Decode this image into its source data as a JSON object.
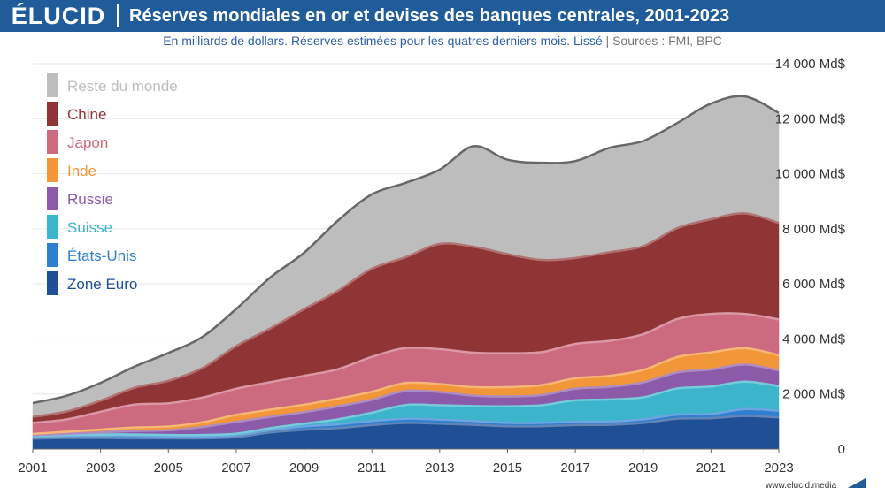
{
  "header": {
    "logo": "ÉLUCID",
    "title": "Réserves mondiales en or et devises des banques centrales, 2001-2023"
  },
  "subtitle": {
    "text": "En milliards de dollars. Réserves estimées pour les quatres derniers mois. Lissé",
    "separator": "|",
    "sources": "Sources : FMI, BPC"
  },
  "footer": {
    "url": "www.elucid.media"
  },
  "colors": {
    "Reste du monde": "#bdbdbd",
    "Chine": "#8f3535",
    "Japon": "#cc6a7f",
    "Inde": "#f2963a",
    "Russie": "#8b5aa8",
    "Suisse": "#3bb4cc",
    "États-Unis": "#2f7fd1",
    "Zone Euro": "#1f5096"
  },
  "chart_data": {
    "type": "area",
    "stacked": true,
    "x": [
      2001,
      2002,
      2003,
      2004,
      2005,
      2006,
      2007,
      2008,
      2009,
      2010,
      2011,
      2012,
      2013,
      2014,
      2015,
      2016,
      2017,
      2018,
      2019,
      2020,
      2021,
      2022,
      2023
    ],
    "series": [
      {
        "name": "Zone Euro",
        "values": [
          380,
          400,
          400,
          390,
          390,
          390,
          430,
          600,
          700,
          760,
          870,
          950,
          920,
          880,
          830,
          830,
          870,
          880,
          950,
          1100,
          1120,
          1200,
          1150
        ]
      },
      {
        "name": "États-Unis",
        "values": [
          60,
          70,
          80,
          90,
          70,
          70,
          70,
          80,
          120,
          140,
          150,
          150,
          150,
          140,
          120,
          120,
          120,
          120,
          130,
          150,
          150,
          250,
          240
        ]
      },
      {
        "name": "Suisse",
        "values": [
          30,
          40,
          50,
          50,
          50,
          50,
          60,
          80,
          100,
          180,
          300,
          500,
          520,
          540,
          600,
          640,
          780,
          800,
          800,
          950,
          1000,
          1000,
          900
        ]
      },
      {
        "name": "Russie",
        "values": [
          30,
          45,
          75,
          125,
          170,
          290,
          430,
          410,
          420,
          470,
          470,
          510,
          480,
          380,
          360,
          370,
          420,
          460,
          540,
          580,
          620,
          620,
          560
        ]
      },
      {
        "name": "Inde",
        "values": [
          50,
          70,
          100,
          130,
          140,
          170,
          250,
          260,
          270,
          280,
          290,
          290,
          290,
          310,
          340,
          360,
          380,
          400,
          450,
          560,
          620,
          590,
          560
        ]
      },
      {
        "name": "Japon",
        "values": [
          400,
          450,
          650,
          830,
          840,
          900,
          950,
          1000,
          1050,
          1070,
          1270,
          1270,
          1270,
          1250,
          1230,
          1200,
          1250,
          1270,
          1300,
          1380,
          1400,
          1250,
          1300
        ]
      },
      {
        "name": "Chine",
        "values": [
          220,
          290,
          400,
          610,
          820,
          1070,
          1550,
          1950,
          2420,
          2850,
          3200,
          3300,
          3820,
          3850,
          3600,
          3350,
          3120,
          3220,
          3200,
          3300,
          3440,
          3650,
          3500
        ]
      },
      {
        "name": "Reste du monde",
        "values": [
          500,
          570,
          650,
          770,
          1010,
          1130,
          1350,
          1850,
          2050,
          2550,
          2700,
          2700,
          2700,
          3650,
          3430,
          3530,
          3520,
          3790,
          3820,
          3820,
          4200,
          4250,
          4000
        ]
      }
    ],
    "legend_placement": "top-left",
    "y_ticks": [
      0,
      2000,
      4000,
      6000,
      8000,
      10000,
      12000,
      14000
    ],
    "y_tick_labels": [
      "0",
      "2 000 Md$",
      "4 000 Md$",
      "6 000 Md$",
      "8 000 Md$",
      "10 000 Md$",
      "12 000 Md$",
      "14 000 Md$"
    ],
    "x_ticks": [
      2001,
      2003,
      2005,
      2007,
      2009,
      2011,
      2013,
      2015,
      2017,
      2019,
      2021,
      2023
    ],
    "x_tick_labels": [
      "2001",
      "2003",
      "2005",
      "2007",
      "2009",
      "2011",
      "2013",
      "2015",
      "2017",
      "2019",
      "2021",
      "2023"
    ],
    "ylim": [
      0,
      14000
    ],
    "xlim": [
      2001,
      2023
    ],
    "grid": true
  }
}
